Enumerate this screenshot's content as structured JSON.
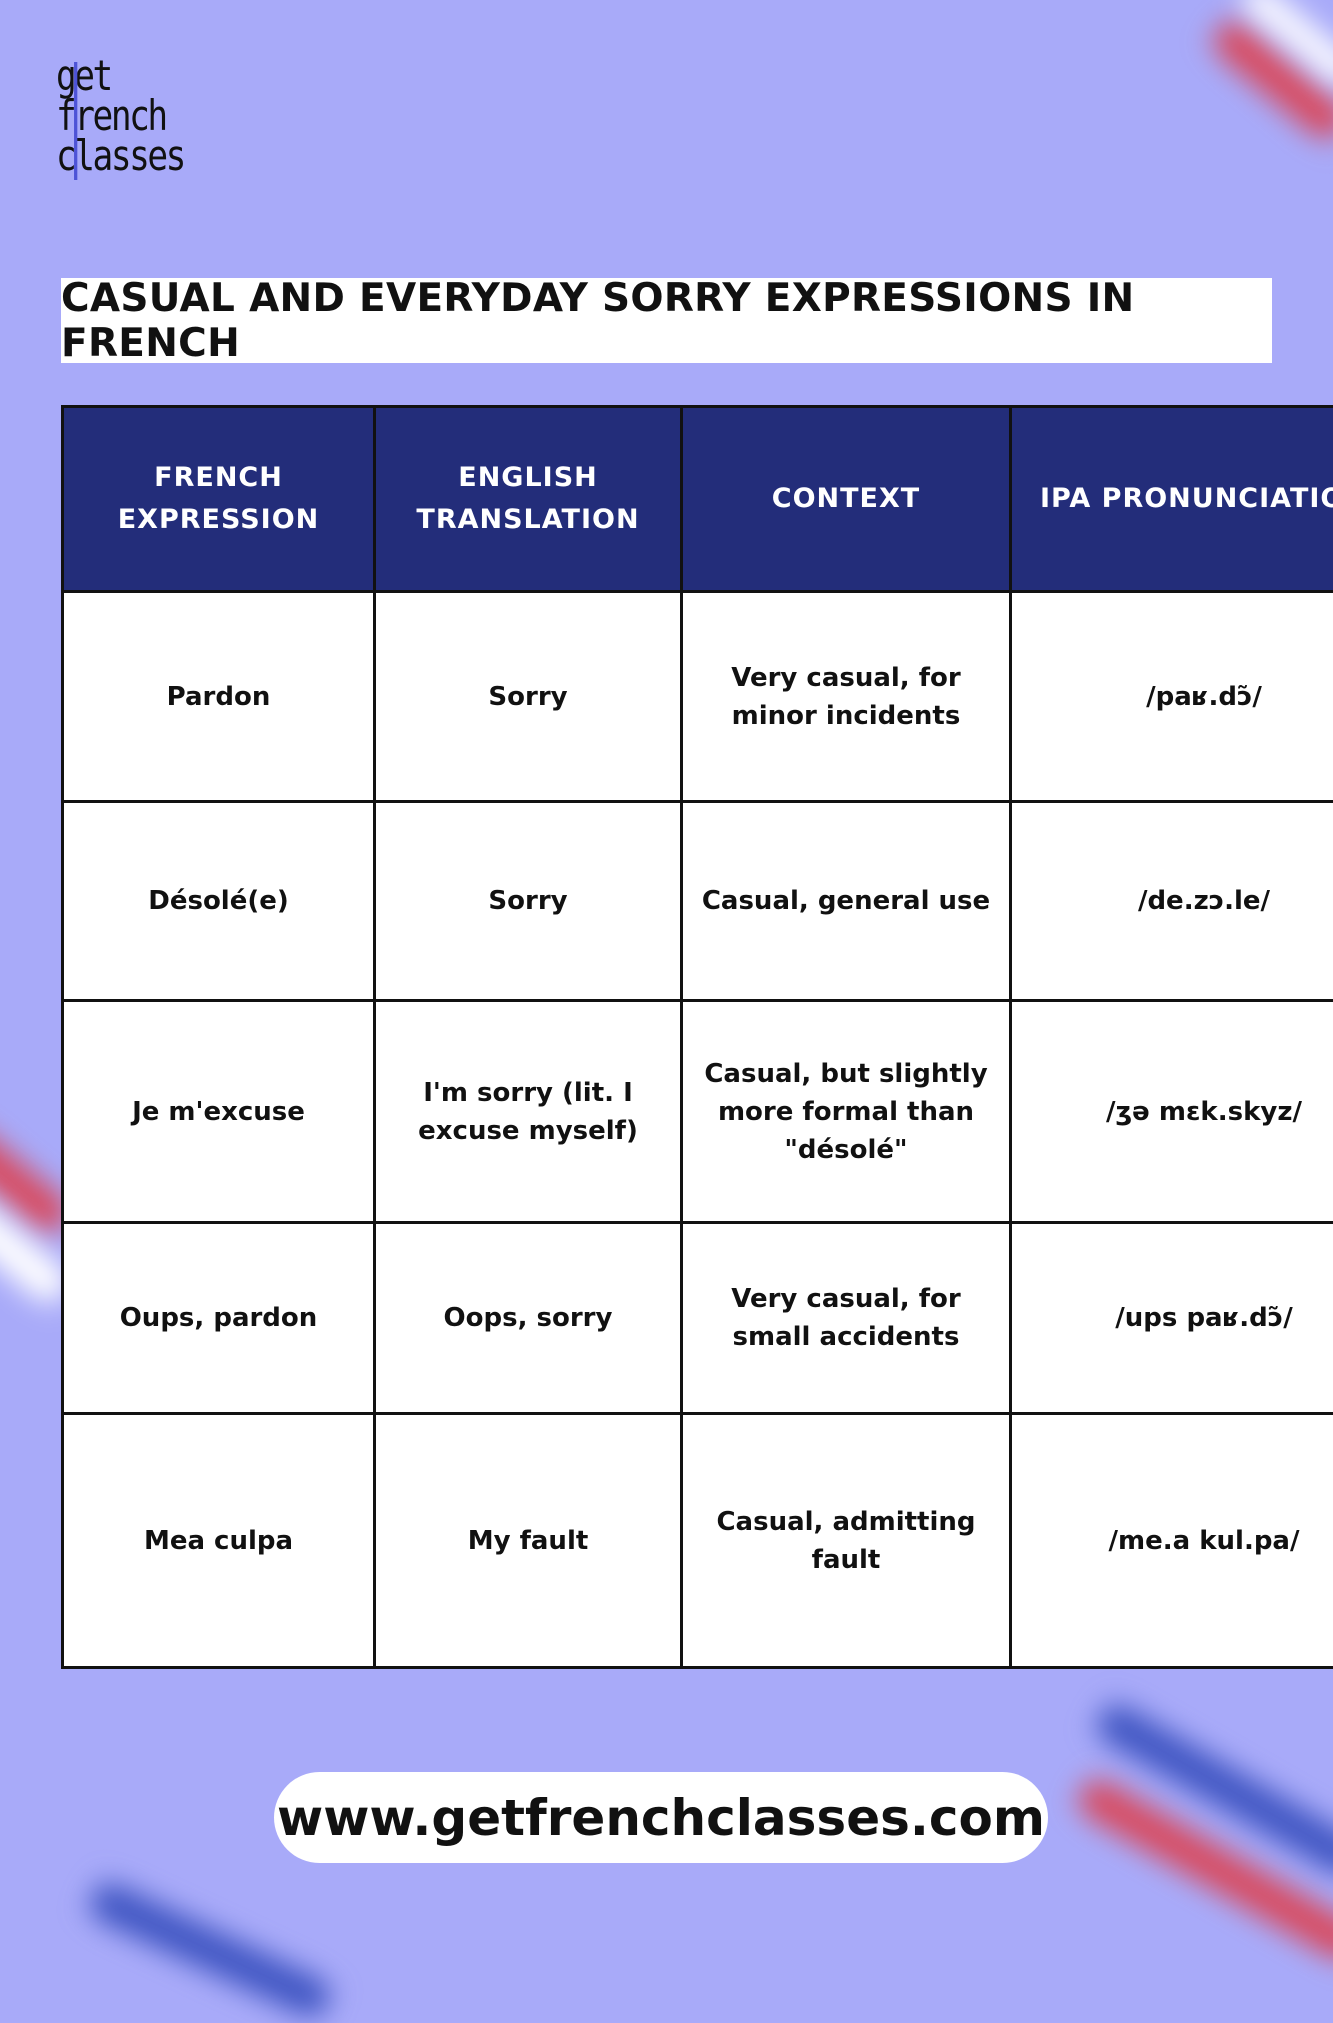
{
  "header": {
    "logo": [
      "get",
      "french",
      "classes"
    ],
    "title": "CASUAL AND EVERYDAY SORRY EXPRESSIONS IN FRENCH"
  },
  "table": {
    "columns": [
      "FRENCH EXPRESSION",
      "ENGLISH TRANSLATION",
      "CONTEXT",
      "IPA PRONUNCIATION"
    ],
    "rows": [
      [
        "Pardon",
        "Sorry",
        "Very casual, for minor incidents",
        "/paʁ.dɔ̃/"
      ],
      [
        "Désolé(e)",
        "Sorry",
        "Casual, general use",
        "/de.zɔ.le/"
      ],
      [
        "Je m'excuse",
        "I'm sorry (lit. I excuse myself)",
        "Casual, but slightly more formal than \"désolé\"",
        "/ʒə mɛk.skyz/"
      ],
      [
        "Oups, pardon",
        "Oops, sorry",
        "Very casual, for small accidents",
        "/ups paʁ.dɔ̃/"
      ],
      [
        "Mea culpa",
        "My fault",
        "Casual, admitting fault",
        "/me.a kul.pa/"
      ]
    ]
  },
  "footer": {
    "url": "www.getfrenchclasses.com"
  }
}
